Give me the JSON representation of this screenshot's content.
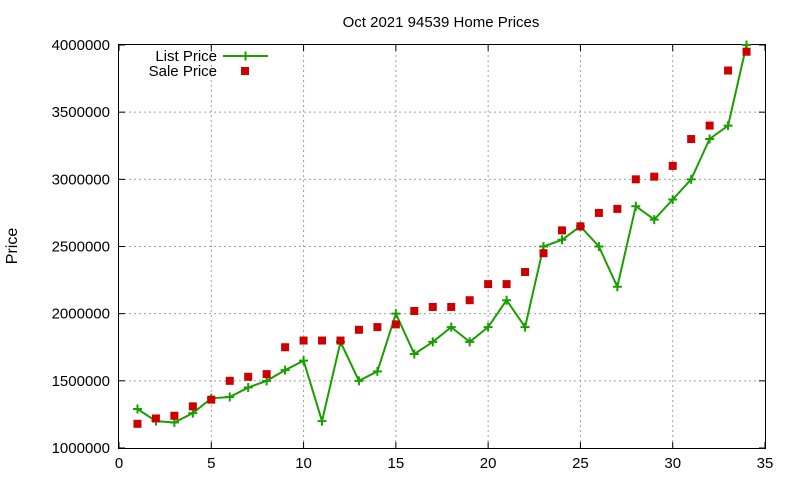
{
  "chart_data": {
    "type": "line",
    "title": "Oct 2021 94539 Home Prices",
    "xlabel": "",
    "ylabel": "Price",
    "xlim": [
      0,
      35
    ],
    "ylim": [
      1000000,
      4000000
    ],
    "x_ticks": [
      "0",
      "5",
      "10",
      "15",
      "20",
      "25",
      "30",
      "35"
    ],
    "y_ticks": [
      "1000000",
      "1500000",
      "2000000",
      "2500000",
      "3000000",
      "3500000",
      "4000000"
    ],
    "grid": true,
    "legend_position": "top-left",
    "series": [
      {
        "name": "List Price",
        "style": "line+cross",
        "color": "#1a9e00",
        "x": [
          1,
          2,
          3,
          4,
          5,
          6,
          7,
          8,
          9,
          10,
          11,
          12,
          13,
          14,
          15,
          16,
          17,
          18,
          19,
          20,
          21,
          22,
          23,
          24,
          25,
          26,
          27,
          28,
          29,
          30,
          31,
          32,
          33,
          34
        ],
        "values": [
          1290000,
          1200000,
          1190000,
          1260000,
          1370000,
          1380000,
          1450000,
          1500000,
          1580000,
          1650000,
          1200000,
          1790000,
          1500000,
          1570000,
          2000000,
          1700000,
          1790000,
          1900000,
          1790000,
          1900000,
          2100000,
          1900000,
          2500000,
          2550000,
          2650000,
          2500000,
          2200000,
          2800000,
          2700000,
          2850000,
          3000000,
          3300000,
          3400000,
          4000000
        ]
      },
      {
        "name": "Sale Price",
        "style": "square",
        "color": "#cc0000",
        "x": [
          1,
          2,
          3,
          4,
          5,
          6,
          7,
          8,
          9,
          10,
          11,
          12,
          13,
          14,
          15,
          16,
          17,
          18,
          19,
          20,
          21,
          22,
          23,
          24,
          25,
          26,
          27,
          28,
          29,
          30,
          31,
          32,
          33,
          34
        ],
        "values": [
          1180000,
          1220000,
          1240000,
          1310000,
          1360000,
          1500000,
          1530000,
          1550000,
          1750000,
          1800000,
          1800000,
          1800000,
          1880000,
          1900000,
          1920000,
          2020000,
          2050000,
          2050000,
          2100000,
          2220000,
          2220000,
          2310000,
          2450000,
          2620000,
          2650000,
          2750000,
          2780000,
          3000000,
          3020000,
          3100000,
          3300000,
          3400000,
          3810000,
          3950000
        ]
      }
    ]
  }
}
